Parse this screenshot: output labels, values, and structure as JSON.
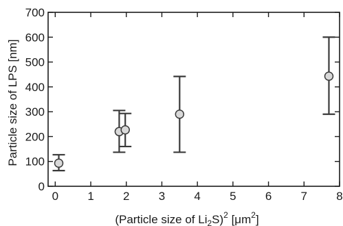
{
  "chart_data": {
    "type": "scatter",
    "xlabel": {
      "prefix": "(Particle size of Li",
      "sub": "2",
      "middle": "S)",
      "sup": "2",
      "suffix": " [μm",
      "sup2": "2",
      "end": "]"
    },
    "ylabel": "Particle size of LPS [nm]",
    "xlim": [
      -0.2,
      8
    ],
    "ylim": [
      0,
      700
    ],
    "xticks": [
      0,
      1,
      2,
      3,
      4,
      5,
      6,
      7,
      8
    ],
    "yticks": [
      0,
      100,
      200,
      300,
      400,
      500,
      600,
      700
    ],
    "grid": false,
    "series": [
      {
        "points": [
          {
            "x": 0.1,
            "y": 93,
            "err_low": 63,
            "err_high": 127
          },
          {
            "x": 1.8,
            "y": 220,
            "err_low": 137,
            "err_high": 305
          },
          {
            "x": 1.97,
            "y": 227,
            "err_low": 160,
            "err_high": 293
          },
          {
            "x": 3.5,
            "y": 290,
            "err_low": 137,
            "err_high": 442
          },
          {
            "x": 7.7,
            "y": 443,
            "err_low": 290,
            "err_high": 600
          }
        ]
      }
    ],
    "colors": {
      "marker_fill": "#d9d9d9",
      "marker_edge": "#3a3a3a",
      "errorbar": "#3a3a3a",
      "axis": "#1a1a1a"
    }
  }
}
